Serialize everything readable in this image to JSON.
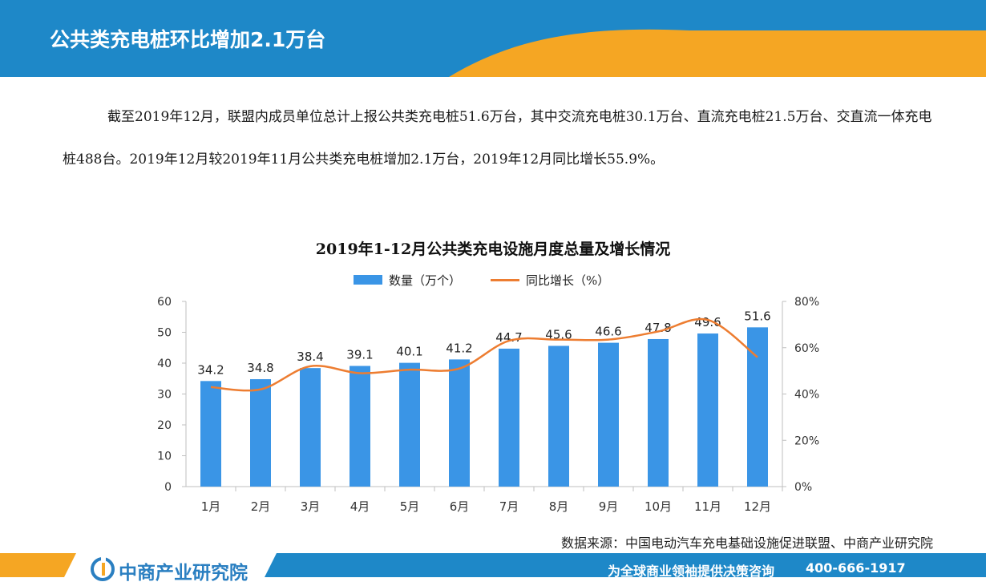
{
  "header": {
    "title": "公共类充电桩环比增加2.1万台"
  },
  "body": {
    "paragraph": "截至2019年12月，联盟内成员单位总计上报公共类充电桩51.6万台，其中交流充电桩30.1万台、直流充电桩21.5万台、交直流一体充电桩488台。2019年12月较2019年11月公共类充电桩增加2.1万台，2019年12月同比增长55.9%。"
  },
  "chart_data": {
    "type": "bar",
    "title": "2019年1-12月公共类充电设施月度总量及增长情况",
    "categories": [
      "1月",
      "2月",
      "3月",
      "4月",
      "5月",
      "6月",
      "7月",
      "8月",
      "9月",
      "10月",
      "11月",
      "12月"
    ],
    "series": [
      {
        "name": "数量（万个）",
        "type": "bar",
        "axis": "left",
        "color": "#3a95e6",
        "values": [
          34.2,
          34.8,
          38.4,
          39.1,
          40.1,
          41.2,
          44.7,
          45.6,
          46.6,
          47.8,
          49.6,
          51.6
        ]
      },
      {
        "name": "同比增长（%）",
        "type": "line",
        "axis": "right",
        "color": "#ed7d31",
        "values": [
          43,
          42,
          52,
          49,
          50.5,
          51,
          63,
          63.5,
          63.5,
          67,
          72,
          55.9
        ]
      }
    ],
    "y_left": {
      "min": 0,
      "max": 60,
      "ticks": [
        "0",
        "10",
        "20",
        "30",
        "40",
        "50",
        "60"
      ]
    },
    "y_right": {
      "min": 0,
      "max": 80,
      "ticks": [
        "0%",
        "20%",
        "40%",
        "60%",
        "80%"
      ]
    },
    "data_labels": [
      "34.2",
      "34.8",
      "38.4",
      "39.1",
      "40.1",
      "41.2",
      "44.7",
      "45.6",
      "46.6",
      "47.8",
      "49.6",
      "51.6"
    ],
    "grid": false,
    "legend_position": "top"
  },
  "source": {
    "text": "数据来源：中国电动汽车充电基础设施促进联盟、中商产业研究院"
  },
  "footer": {
    "logo_text": "中商产业研究院",
    "slogan": "为全球商业领袖提供决策咨询",
    "phone": "400-666-1917"
  },
  "colors": {
    "header_blue": "#1e88c8",
    "header_orange": "#f5a623",
    "bar": "#3a95e6",
    "line": "#ed7d31"
  }
}
